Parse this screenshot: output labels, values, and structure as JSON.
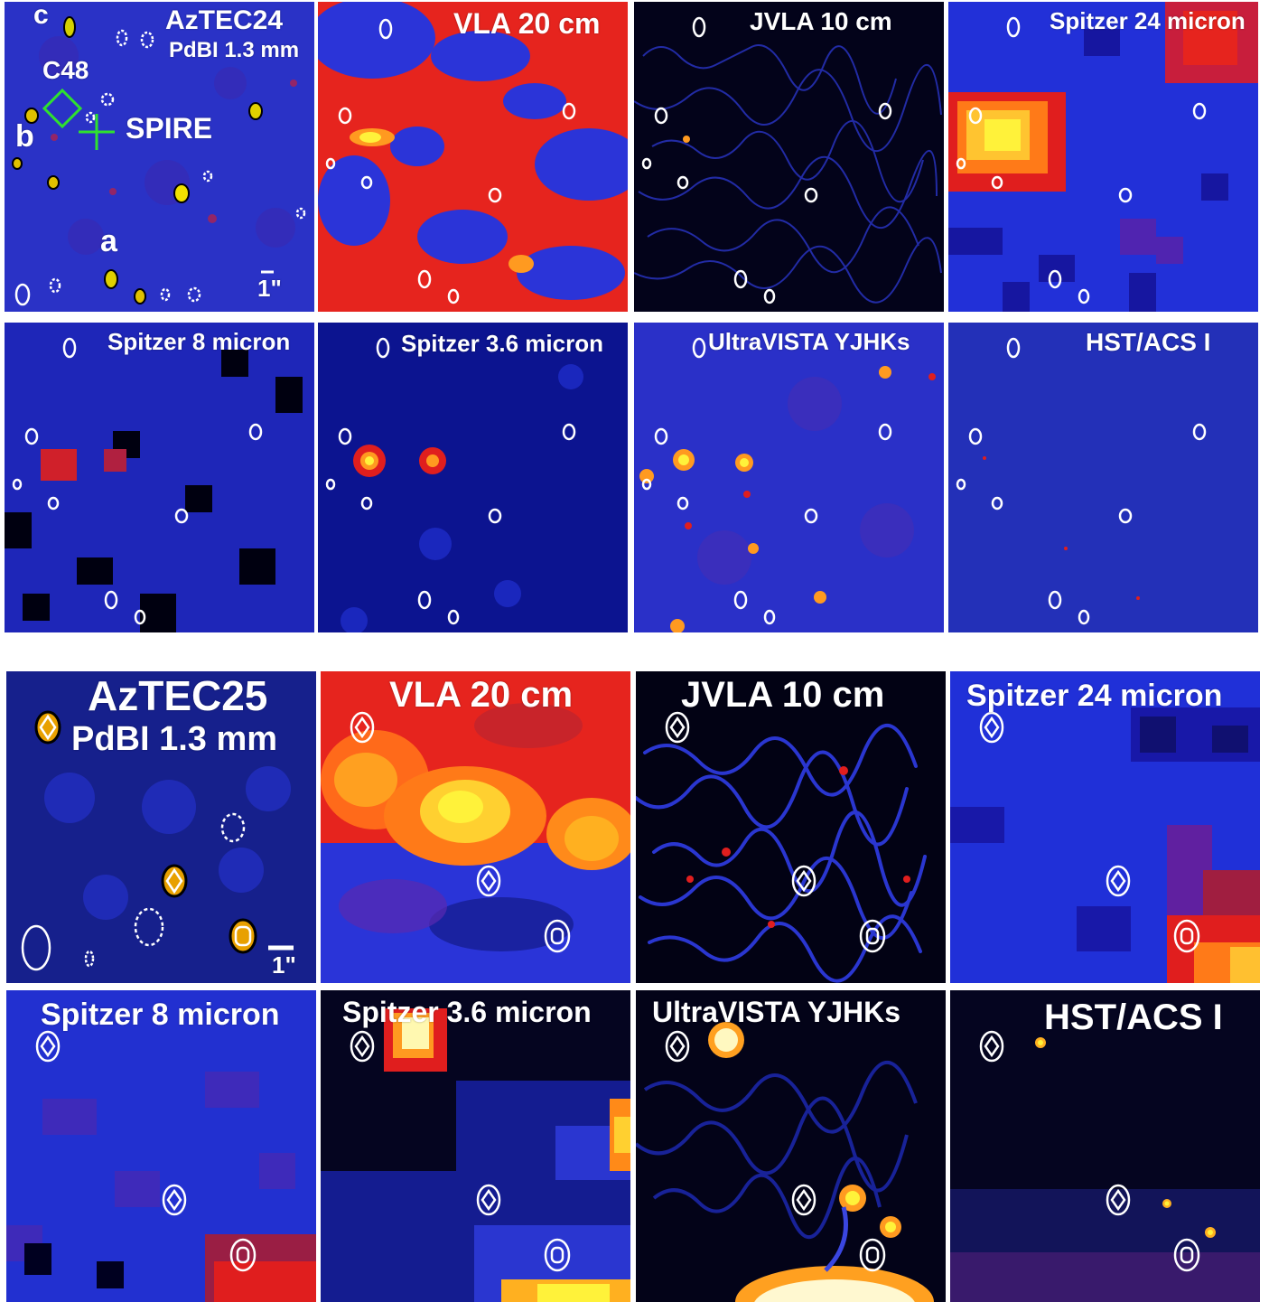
{
  "figure_top": {
    "source": "AzTEC24",
    "panels": [
      {
        "label": "AzTEC24",
        "sublabel": "PdBI 1.3 mm"
      },
      {
        "label": "VLA 20 cm"
      },
      {
        "label": "JVLA 10 cm"
      },
      {
        "label": "Spitzer 24 micron"
      },
      {
        "label": "Spitzer 8 micron"
      },
      {
        "label": "Spitzer 3.6 micron"
      },
      {
        "label": "UltraVISTA YJHKs"
      },
      {
        "label": "HST/ACS I"
      }
    ],
    "annotations": {
      "c": "c",
      "b": "b",
      "a": "a",
      "c48": "C48",
      "spire": "SPIRE",
      "scale": "1\""
    }
  },
  "figure_bottom": {
    "source": "AzTEC25",
    "panels": [
      {
        "label": "AzTEC25",
        "sublabel": "PdBI 1.3 mm"
      },
      {
        "label": "VLA 20 cm"
      },
      {
        "label": "JVLA 10 cm"
      },
      {
        "label": "Spitzer 24 micron"
      },
      {
        "label": "Spitzer 8 micron"
      },
      {
        "label": "Spitzer 3.6 micron"
      },
      {
        "label": "UltraVISTA YJHKs"
      },
      {
        "label": "HST/ACS I"
      }
    ],
    "annotations": {
      "scale": "1\""
    }
  },
  "colors": {
    "deep_blue": "#1a1aa8",
    "blue": "#2a36e0",
    "red": "#e8221e",
    "orange": "#ff8a10",
    "yellow": "#fff23a",
    "black": "#000010",
    "green_marker": "#2fe12f"
  }
}
